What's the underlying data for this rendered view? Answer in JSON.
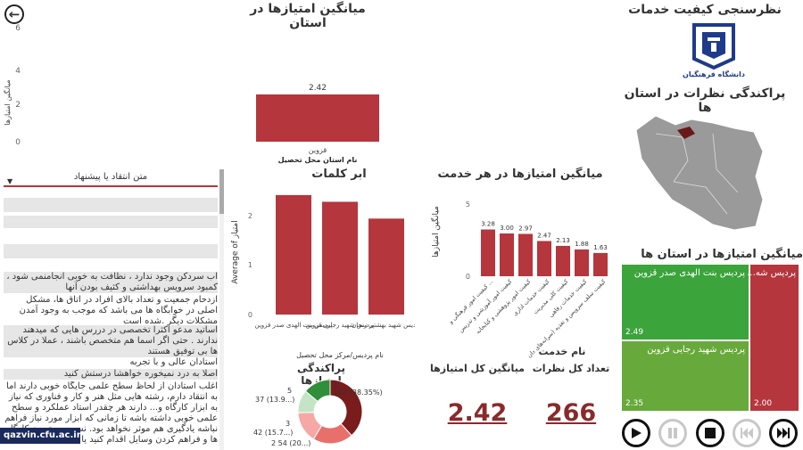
{
  "header": {
    "brand_title": "نظرسنجی کیفیت خدمات",
    "main_title": "میانگین امتیازها در استان",
    "map_title": "پراکندگی نظرات در استان ها",
    "treemap_title": "میانگین امتیازها در استان ها"
  },
  "logo": {
    "caption": "دانشگاه فرهنگیان"
  },
  "top_chart": {
    "ylabel": "میانگین امتیازها",
    "xlabel": "نام استان محل تحصیل",
    "category": "قزوین",
    "value_label": "2.42",
    "tick_6": "6",
    "tick_4": "4",
    "tick_2": "2",
    "tick_0": "0"
  },
  "comments": {
    "header": "متن انتقاد یا پیشنهاد",
    "items": [
      "آب سردکن وجود ندارد ، نظافت به خوبی انجامنمی شود ، کمبود سرویس بهداشتی و کثیف بودن آنها",
      "ازدحام جمعیت و تعداد بالای افراد در اتاق ها، مشکل اصلی در خوابگاه ها می باشد که موجب به وجود آمدن مشکلات دیگر .شده است",
      "اساتید مدعو اکثرا تخصصی در دررس هایی که میدهند ندارند . حتی اگر اسما هم متخصص باشند ، عملا در کلاس ها بی توفیق هستند",
      "استادان عالی و با تجربه",
      "اصلا به درد نمیخوره خواهشا درستش کنید",
      "اغلب استادان از لحاظ سطح علمی جایگاه خوبی دارند اما به انتقاد دارم، رشته هایی مثل هنر و کار و فناوری که نیاز به ابزار کارگاه و... دارند هر چقدر استاد عملکرد و سطح علمی خوبی داشته باشه تا زمانی که ابزار مورد نیاز فراهم نباشه یادگیری هم موثر نخواهد بود. نسبت به تجهیز کارگاه ها و فراهم کردن وسایل اقدام کنید یا حداقل کنید"
    ]
  },
  "word_chart": {
    "title": "ابر کلمات",
    "ylabel": "Average of امتیاز",
    "xlabel": "نام پردیس/مرکز محل تحصیل",
    "tick_2": "2",
    "tick_1": "1",
    "tick_0": "0",
    "cats": [
      "پردیس بنت الهدی صدر قزوین",
      "پردیس شهید رجایی قزوین",
      "پردیس شهید بهشتی زنجان"
    ]
  },
  "service_chart": {
    "title": "میانگین امتیازها در هر خدمت",
    "ylabel": "میانگین امتیازها",
    "xlabel": "نام خدمت",
    "tick_5": "5",
    "tick_0": "0",
    "value_labels": [
      "3.28",
      "3.00",
      "2.97",
      "2.47",
      "2.13",
      "1.88",
      "1.63"
    ],
    "cats": [
      "کیفیت امور فرهنگی و ...",
      "کیفیت امور آموزشی و تدریس",
      "کیفیت امور پژوهشی و کتابخانه",
      "کیفیت خدمات اداری",
      "کیفیت کلی مدیریت",
      "کیفیت خدمات رفاهی",
      "کیفیت سلف سرویس و تغذیه (سرانه‌های دان"
    ]
  },
  "donut": {
    "title": "پراکندگی امتیازها",
    "labels": [
      "1",
      "102 (38.35%)",
      "5",
      "37 (13.9...)",
      "3",
      "42 (15.7...)",
      "2 54 (20...)"
    ]
  },
  "kpi": {
    "total_label": "تعداد کل نظرات",
    "total_value": "266",
    "avg_label": "میانگین کل امتیازها",
    "avg_value": "2.42"
  },
  "treemap": {
    "cells": [
      {
        "name": "پردیس بنت الهدی صدر قزوین",
        "value": "2.49"
      },
      {
        "name": "پردیس شهید رجایی قزوین",
        "value": "2.35"
      },
      {
        "name": "پردیس شه...",
        "value": "2.00"
      }
    ]
  },
  "watermark": "qazvin.cfu.ac.ir",
  "chart_data": [
    {
      "type": "bar",
      "title": "میانگین امتیازها در استان",
      "xlabel": "نام استان محل تحصیل",
      "ylabel": "میانگین امتیازها",
      "categories": [
        "قزوین"
      ],
      "values": [
        2.42
      ],
      "ylim": [
        0,
        6
      ]
    },
    {
      "type": "bar",
      "title": "ابر کلمات",
      "xlabel": "نام پردیس/مرکز محل تحصیل",
      "ylabel": "Average of امتیاز",
      "categories": [
        "پردیس بنت الهدی صدر قزوین",
        "پردیس شهید رجایی قزوین",
        "پردیس شهید بهشتی زنجان"
      ],
      "values": [
        2.49,
        2.35,
        2.0
      ],
      "ylim": [
        0,
        2.6
      ]
    },
    {
      "type": "bar",
      "title": "میانگین امتیازها در هر خدمت",
      "xlabel": "نام خدمت",
      "ylabel": "میانگین امتیازها",
      "categories": [
        "کیفیت امور فرهنگی و ...",
        "کیفیت امور آموزشی و تدریس",
        "کیفیت امور پژوهشی و کتابخانه",
        "کیفیت خدمات اداری",
        "کیفیت کلی مدیریت",
        "کیفیت خدمات رفاهی",
        "کیفیت سلف سرویس و تغذیه"
      ],
      "values": [
        3.28,
        3.0,
        2.97,
        2.47,
        2.13,
        1.88,
        1.63
      ],
      "ylim": [
        0,
        5
      ]
    },
    {
      "type": "pie",
      "title": "پراکندگی امتیازها",
      "categories": [
        "1",
        "2",
        "3",
        "4",
        "5"
      ],
      "values": [
        102,
        54,
        42,
        31,
        37
      ],
      "colors": [
        "#7a1c1c",
        "#e8706c",
        "#f6a8a6",
        "#c5e3c5",
        "#2f8f3a"
      ]
    }
  ],
  "colors": {
    "accent": "#b5363d",
    "treemap_green": "#3ba43b",
    "treemap_green2": "#67a93a",
    "treemap_red": "#b5363d"
  }
}
